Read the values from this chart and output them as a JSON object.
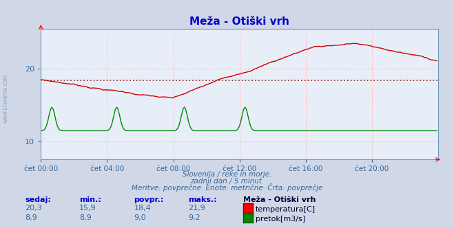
{
  "title": "Meža - Otiški vrh",
  "bg_color": "#d0d8e8",
  "plot_bg_color": "#e8eef8",
  "title_color": "#0000cc",
  "temp_color": "#cc0000",
  "flow_color": "#008800",
  "avg_line_color": "#993333",
  "avg_value": 18.4,
  "ylim_temp": [
    7.5,
    25.5
  ],
  "ylim_flow": [
    8.0,
    10.5
  ],
  "yticks": [
    10,
    20
  ],
  "axis_color": "#6699bb",
  "tick_color": "#336699",
  "grid_color": "#ffaaaa",
  "xtick_labels": [
    "čet 00:00",
    "čet 04:00",
    "čet 08:00",
    "čet 12:00",
    "čet 16:00",
    "čet 20:00"
  ],
  "xtick_positions": [
    0,
    48,
    96,
    144,
    192,
    240
  ],
  "watermark": "www.si-vreme.com",
  "footer_line1": "Slovenija / reke in morje.",
  "footer_line2": "zadnji dan / 5 minut.",
  "footer_line3": "Meritve: povprečne  Enote: metrične  Črta: povprečje",
  "stats_header": [
    "sedaj:",
    "min.:",
    "povpr.:",
    "maks.:",
    "Meža - Otiški vrh"
  ],
  "stats_temp": [
    "20,3",
    "15,9",
    "18,4",
    "21,9",
    "temperatura[C]"
  ],
  "stats_flow": [
    "8,9",
    "8,9",
    "9,0",
    "9,2",
    "pretok[m3/s]"
  ],
  "n_points": 288
}
